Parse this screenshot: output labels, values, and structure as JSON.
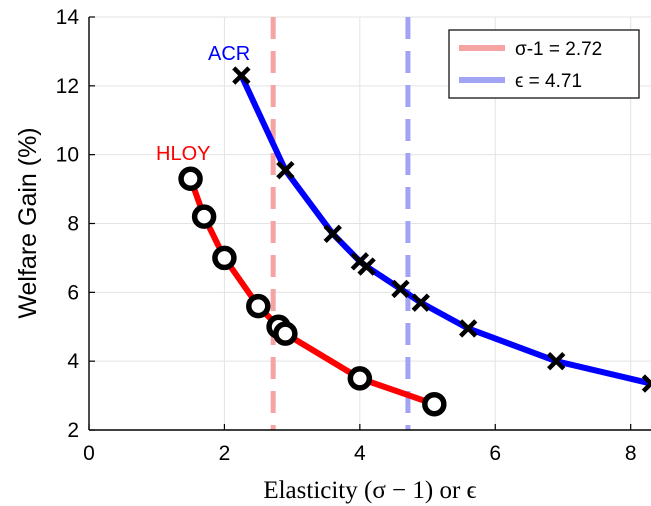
{
  "chart_data": {
    "type": "line",
    "xlabel": "Elasticity (σ − 1) or ϵ",
    "ylabel": "Welfare Gain (%)",
    "xlim": [
      0,
      8.3
    ],
    "ylim": [
      2,
      14
    ],
    "xticks": [
      "0",
      "2",
      "4",
      "6",
      "8"
    ],
    "yticks": [
      "2",
      "4",
      "6",
      "8",
      "10",
      "12",
      "14"
    ],
    "grid": true,
    "legend_position": "top-right",
    "series": [
      {
        "name": "HLOY",
        "color": "#ff0000",
        "marker": "circle",
        "x": [
          1.5,
          1.7,
          2.0,
          2.5,
          2.8,
          2.9,
          4.0,
          5.1
        ],
        "y": [
          9.3,
          8.2,
          7.0,
          5.6,
          5.0,
          4.8,
          3.5,
          2.75
        ]
      },
      {
        "name": "ACR",
        "color": "#0000ff",
        "marker": "x",
        "x": [
          2.25,
          2.9,
          3.6,
          4.0,
          4.1,
          4.6,
          4.9,
          5.6,
          6.9,
          8.3
        ],
        "y": [
          12.3,
          9.55,
          7.7,
          6.9,
          6.75,
          6.1,
          5.7,
          4.95,
          4.0,
          3.35
        ]
      }
    ],
    "reference_lines": [
      {
        "x": 2.72,
        "color": "#f5a3a3",
        "legend": "σ-1 = 2.72"
      },
      {
        "x": 4.71,
        "color": "#a3a3f5",
        "legend": "ϵ = 4.71"
      }
    ]
  }
}
